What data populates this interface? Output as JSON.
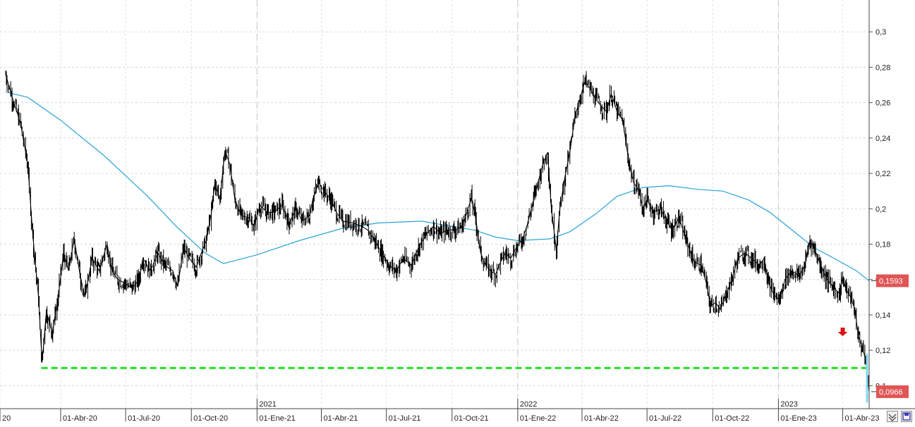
{
  "chart_data": {
    "type": "line",
    "ylim": [
      0.087,
      0.318
    ],
    "yticks": [
      "0,3",
      "0,28",
      "0,26",
      "0,24",
      "0,22",
      "0,2",
      "0,18",
      "0,16",
      "0,14",
      "0,12",
      "0,1"
    ],
    "ytick_values": [
      0.3,
      0.28,
      0.26,
      0.24,
      0.22,
      0.2,
      0.18,
      0.16,
      0.14,
      0.12,
      0.1
    ],
    "x_start": "2020-01-15",
    "x_end": "2023-05-08",
    "xticks": [
      {
        "date": "2020-01-01",
        "label": "20"
      },
      {
        "date": "2020-04-01",
        "label": "01-Abr-20"
      },
      {
        "date": "2020-07-01",
        "label": "01-Jul-20"
      },
      {
        "date": "2020-10-01",
        "label": "01-Oct-20"
      },
      {
        "date": "2021-01-01",
        "label": "01-Ene-21"
      },
      {
        "date": "2021-04-01",
        "label": "01-Abr-21"
      },
      {
        "date": "2021-07-01",
        "label": "01-Jul-21"
      },
      {
        "date": "2021-10-01",
        "label": "01-Oct-21"
      },
      {
        "date": "2022-01-01",
        "label": "01-Ene-22"
      },
      {
        "date": "2022-04-01",
        "label": "01-Abr-22"
      },
      {
        "date": "2022-07-01",
        "label": "01-Jul-22"
      },
      {
        "date": "2022-10-01",
        "label": "01-Oct-22"
      },
      {
        "date": "2023-01-01",
        "label": "01-Ene-23"
      },
      {
        "date": "2023-04-01",
        "label": "01-Abr-23"
      }
    ],
    "year_markers": [
      {
        "date": "2021-01-01",
        "label": "2021"
      },
      {
        "date": "2022-01-01",
        "label": "2022"
      },
      {
        "date": "2023-01-01",
        "label": "2023"
      }
    ],
    "series": [
      {
        "color": "#000000",
        "points": [
          [
            "2020-01-15",
            0.276
          ],
          [
            "2020-01-25",
            0.262
          ],
          [
            "2020-02-05",
            0.248
          ],
          [
            "2020-02-15",
            0.225
          ],
          [
            "2020-02-22",
            0.185
          ],
          [
            "2020-03-01",
            0.15
          ],
          [
            "2020-03-06",
            0.113
          ],
          [
            "2020-03-12",
            0.142
          ],
          [
            "2020-03-20",
            0.13
          ],
          [
            "2020-03-28",
            0.148
          ],
          [
            "2020-04-05",
            0.175
          ],
          [
            "2020-04-12",
            0.165
          ],
          [
            "2020-04-20",
            0.183
          ],
          [
            "2020-04-28",
            0.163
          ],
          [
            "2020-05-05",
            0.15
          ],
          [
            "2020-05-15",
            0.172
          ],
          [
            "2020-05-25",
            0.165
          ],
          [
            "2020-06-05",
            0.18
          ],
          [
            "2020-06-12",
            0.165
          ],
          [
            "2020-06-20",
            0.16
          ],
          [
            "2020-06-30",
            0.158
          ],
          [
            "2020-07-10",
            0.155
          ],
          [
            "2020-07-20",
            0.16
          ],
          [
            "2020-07-25",
            0.172
          ],
          [
            "2020-08-05",
            0.165
          ],
          [
            "2020-08-15",
            0.175
          ],
          [
            "2020-08-25",
            0.168
          ],
          [
            "2020-09-05",
            0.165
          ],
          [
            "2020-09-12",
            0.156
          ],
          [
            "2020-09-20",
            0.178
          ],
          [
            "2020-09-28",
            0.172
          ],
          [
            "2020-10-08",
            0.167
          ],
          [
            "2020-10-15",
            0.175
          ],
          [
            "2020-10-22",
            0.182
          ],
          [
            "2020-10-30",
            0.2
          ],
          [
            "2020-11-03",
            0.215
          ],
          [
            "2020-11-10",
            0.205
          ],
          [
            "2020-11-17",
            0.233
          ],
          [
            "2020-11-24",
            0.225
          ],
          [
            "2020-12-01",
            0.205
          ],
          [
            "2020-12-10",
            0.196
          ],
          [
            "2020-12-20",
            0.195
          ],
          [
            "2020-12-28",
            0.19
          ],
          [
            "2021-01-05",
            0.202
          ],
          [
            "2021-01-15",
            0.198
          ],
          [
            "2021-01-25",
            0.198
          ],
          [
            "2021-02-05",
            0.202
          ],
          [
            "2021-02-15",
            0.192
          ],
          [
            "2021-02-25",
            0.2
          ],
          [
            "2021-03-05",
            0.193
          ],
          [
            "2021-03-15",
            0.196
          ],
          [
            "2021-03-20",
            0.205
          ],
          [
            "2021-03-28",
            0.215
          ],
          [
            "2021-04-05",
            0.21
          ],
          [
            "2021-04-15",
            0.205
          ],
          [
            "2021-04-22",
            0.198
          ],
          [
            "2021-05-01",
            0.193
          ],
          [
            "2021-05-15",
            0.192
          ],
          [
            "2021-05-28",
            0.19
          ],
          [
            "2021-06-05",
            0.188
          ],
          [
            "2021-06-15",
            0.182
          ],
          [
            "2021-06-25",
            0.175
          ],
          [
            "2021-07-05",
            0.168
          ],
          [
            "2021-07-15",
            0.165
          ],
          [
            "2021-07-25",
            0.172
          ],
          [
            "2021-08-05",
            0.168
          ],
          [
            "2021-08-15",
            0.178
          ],
          [
            "2021-08-25",
            0.185
          ],
          [
            "2021-09-05",
            0.19
          ],
          [
            "2021-09-15",
            0.186
          ],
          [
            "2021-09-25",
            0.188
          ],
          [
            "2021-10-05",
            0.188
          ],
          [
            "2021-10-15",
            0.19
          ],
          [
            "2021-10-22",
            0.198
          ],
          [
            "2021-10-28",
            0.206
          ],
          [
            "2021-11-03",
            0.195
          ],
          [
            "2021-11-10",
            0.175
          ],
          [
            "2021-11-17",
            0.168
          ],
          [
            "2021-11-24",
            0.165
          ],
          [
            "2021-12-01",
            0.163
          ],
          [
            "2021-12-08",
            0.17
          ],
          [
            "2021-12-15",
            0.175
          ],
          [
            "2021-12-22",
            0.172
          ],
          [
            "2021-12-30",
            0.178
          ],
          [
            "2022-01-08",
            0.183
          ],
          [
            "2022-01-15",
            0.192
          ],
          [
            "2022-01-25",
            0.208
          ],
          [
            "2022-02-05",
            0.225
          ],
          [
            "2022-02-12",
            0.232
          ],
          [
            "2022-02-17",
            0.2
          ],
          [
            "2022-02-24",
            0.177
          ],
          [
            "2022-03-01",
            0.2
          ],
          [
            "2022-03-08",
            0.218
          ],
          [
            "2022-03-15",
            0.232
          ],
          [
            "2022-03-22",
            0.252
          ],
          [
            "2022-03-29",
            0.262
          ],
          [
            "2022-04-05",
            0.272
          ],
          [
            "2022-04-12",
            0.268
          ],
          [
            "2022-04-20",
            0.262
          ],
          [
            "2022-04-28",
            0.258
          ],
          [
            "2022-05-05",
            0.255
          ],
          [
            "2022-05-12",
            0.265
          ],
          [
            "2022-05-20",
            0.255
          ],
          [
            "2022-05-28",
            0.25
          ],
          [
            "2022-06-05",
            0.228
          ],
          [
            "2022-06-12",
            0.215
          ],
          [
            "2022-06-20",
            0.21
          ],
          [
            "2022-06-25",
            0.2
          ],
          [
            "2022-07-01",
            0.205
          ],
          [
            "2022-07-10",
            0.198
          ],
          [
            "2022-07-20",
            0.2
          ],
          [
            "2022-07-30",
            0.192
          ],
          [
            "2022-08-05",
            0.188
          ],
          [
            "2022-08-15",
            0.195
          ],
          [
            "2022-08-25",
            0.182
          ],
          [
            "2022-09-05",
            0.17
          ],
          [
            "2022-09-15",
            0.168
          ],
          [
            "2022-09-22",
            0.158
          ],
          [
            "2022-09-28",
            0.145
          ],
          [
            "2022-10-05",
            0.147
          ],
          [
            "2022-10-12",
            0.143
          ],
          [
            "2022-10-20",
            0.152
          ],
          [
            "2022-10-28",
            0.16
          ],
          [
            "2022-11-05",
            0.172
          ],
          [
            "2022-11-15",
            0.175
          ],
          [
            "2022-11-25",
            0.172
          ],
          [
            "2022-12-05",
            0.168
          ],
          [
            "2022-12-12",
            0.172
          ],
          [
            "2022-12-18",
            0.158
          ],
          [
            "2022-12-25",
            0.152
          ],
          [
            "2023-01-03",
            0.148
          ],
          [
            "2023-01-10",
            0.16
          ],
          [
            "2023-01-20",
            0.165
          ],
          [
            "2023-01-30",
            0.162
          ],
          [
            "2023-02-07",
            0.168
          ],
          [
            "2023-02-14",
            0.182
          ],
          [
            "2023-02-20",
            0.178
          ],
          [
            "2023-03-01",
            0.168
          ],
          [
            "2023-03-10",
            0.16
          ],
          [
            "2023-03-20",
            0.155
          ],
          [
            "2023-03-28",
            0.152
          ],
          [
            "2023-04-01",
            0.162
          ],
          [
            "2023-04-05",
            0.155
          ],
          [
            "2023-04-12",
            0.15
          ],
          [
            "2023-04-18",
            0.143
          ],
          [
            "2023-04-23",
            0.128
          ],
          [
            "2023-04-28",
            0.122
          ],
          [
            "2023-05-03",
            0.115
          ],
          [
            "2023-05-08",
            0.0966
          ]
        ]
      },
      {
        "color": "#29a3d6",
        "points": [
          [
            "2020-01-15",
            0.266
          ],
          [
            "2020-02-15",
            0.263
          ],
          [
            "2020-04-01",
            0.25
          ],
          [
            "2020-06-01",
            0.23
          ],
          [
            "2020-08-01",
            0.207
          ],
          [
            "2020-09-10",
            0.19
          ],
          [
            "2020-10-20",
            0.175
          ],
          [
            "2020-11-15",
            0.169
          ],
          [
            "2021-01-01",
            0.174
          ],
          [
            "2021-03-01",
            0.182
          ],
          [
            "2021-05-01",
            0.189
          ],
          [
            "2021-06-20",
            0.192
          ],
          [
            "2021-08-20",
            0.193
          ],
          [
            "2021-10-01",
            0.19
          ],
          [
            "2021-11-01",
            0.188
          ],
          [
            "2021-12-01",
            0.184
          ],
          [
            "2022-01-01",
            0.182
          ],
          [
            "2022-02-15",
            0.183
          ],
          [
            "2022-03-15",
            0.187
          ],
          [
            "2022-04-20",
            0.197
          ],
          [
            "2022-05-20",
            0.207
          ],
          [
            "2022-06-25",
            0.212
          ],
          [
            "2022-08-01",
            0.213
          ],
          [
            "2022-09-10",
            0.211
          ],
          [
            "2022-10-15",
            0.21
          ],
          [
            "2022-11-20",
            0.205
          ],
          [
            "2022-12-20",
            0.198
          ],
          [
            "2023-01-20",
            0.188
          ],
          [
            "2023-02-20",
            0.178
          ],
          [
            "2023-03-20",
            0.172
          ],
          [
            "2023-04-20",
            0.165
          ],
          [
            "2023-05-08",
            0.1593
          ]
        ]
      }
    ],
    "support_line": {
      "value": 0.11,
      "from": "2020-03-05",
      "to": "2023-05-08",
      "color": "#22dd22"
    },
    "price_labels": [
      {
        "value": 0.1593,
        "text": "0,1593",
        "color": "#e05555"
      },
      {
        "value": 0.0966,
        "text": "0,0966",
        "color": "#e05555"
      }
    ],
    "annotation_arrow": {
      "date": "2023-04-01",
      "value": 0.128,
      "color": "#dd1111",
      "direction": "down"
    },
    "grid": true,
    "legend": "none"
  }
}
